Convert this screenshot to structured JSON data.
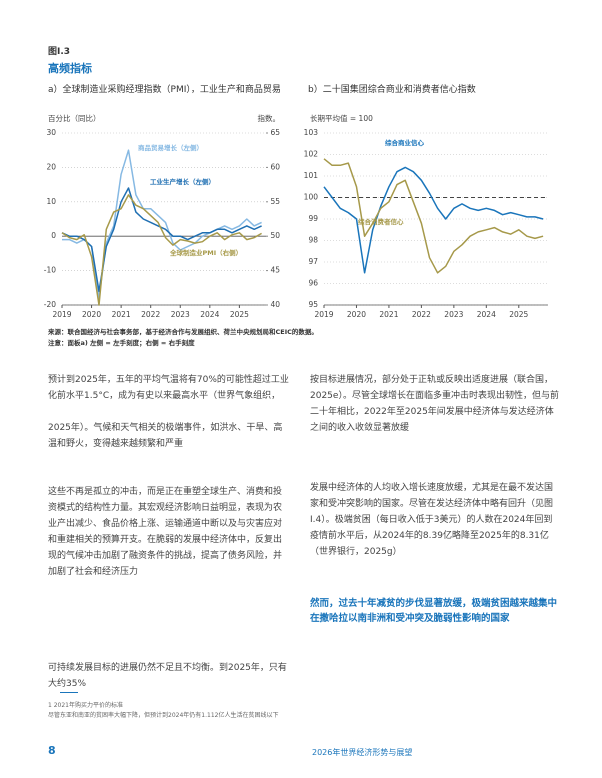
{
  "header": {
    "figure": "图I.3",
    "title": "高频指标"
  },
  "chart_data": [
    {
      "type": "line",
      "title": "a）全球制造业采购经理指数（PMI），工业生产和商品贸易",
      "y_label": "百分比（同比）",
      "y2_label": "指数。",
      "x": [
        2019.0,
        2019.25,
        2019.5,
        2019.75,
        2020.0,
        2020.25,
        2020.5,
        2020.75,
        2021.0,
        2021.25,
        2021.5,
        2021.75,
        2022.0,
        2022.25,
        2022.5,
        2022.75,
        2023.0,
        2023.25,
        2023.5,
        2023.75,
        2024.0,
        2024.25,
        2024.5,
        2024.75,
        2025.0,
        2025.25,
        2025.5,
        2025.75
      ],
      "xlim": [
        2019,
        2025.9
      ],
      "xticks": [
        2019,
        2020,
        2021,
        2022,
        2023,
        2024,
        2025
      ],
      "ylim": [
        -20,
        30
      ],
      "yticks": [
        -20,
        -10,
        0,
        10,
        20,
        30
      ],
      "y2lim": [
        40,
        65
      ],
      "y2ticks": [
        40,
        45,
        50,
        55,
        60,
        65
      ],
      "grid": true,
      "series": [
        {
          "name": "商品贸易增长（左侧）",
          "color": "#86b9e3",
          "axis": "y",
          "values": [
            -1,
            -1,
            -2,
            -1,
            -3,
            -18,
            -2,
            3,
            18,
            25,
            12,
            8,
            8,
            6,
            4,
            -2,
            -4,
            -3,
            -2,
            0,
            1,
            2,
            3,
            2,
            3,
            5,
            3,
            4
          ]
        },
        {
          "name": "工业生产增长（左侧）",
          "color": "#1f6fb2",
          "axis": "y",
          "values": [
            1,
            0,
            0,
            -1,
            -3,
            -16,
            -3,
            2,
            10,
            14,
            7,
            5,
            4,
            3,
            2,
            0,
            0,
            -1,
            0,
            1,
            1,
            2,
            2,
            1,
            2,
            3,
            2,
            3
          ]
        },
        {
          "name": "全球制造业PMI（右侧）",
          "color": "#a79a4a",
          "axis": "y2",
          "values": [
            50.5,
            49.8,
            49.5,
            50.2,
            47,
            40,
            51,
            53.5,
            54,
            56,
            54.5,
            54,
            53,
            52,
            49.8,
            48.7,
            49.5,
            49.3,
            49,
            49.2,
            50,
            50.5,
            49.5,
            50.2,
            50.5,
            49.5,
            49.8,
            50.4
          ]
        }
      ]
    },
    {
      "type": "line",
      "title": "b）二十国集团综合商业和消费者信心指数",
      "y_label": "长期平均值 = 100",
      "x": [
        2019.0,
        2019.25,
        2019.5,
        2019.75,
        2020.0,
        2020.25,
        2020.5,
        2020.75,
        2021.0,
        2021.25,
        2021.5,
        2021.75,
        2022.0,
        2022.25,
        2022.5,
        2022.75,
        2023.0,
        2023.25,
        2023.5,
        2023.75,
        2024.0,
        2024.25,
        2024.5,
        2024.75,
        2025.0,
        2025.25,
        2025.5,
        2025.75
      ],
      "xlim": [
        2019,
        2025.9
      ],
      "xticks": [
        2019,
        2020,
        2021,
        2022,
        2023,
        2024,
        2025
      ],
      "ylim": [
        95,
        103
      ],
      "yticks": [
        95,
        96,
        97,
        98,
        99,
        100,
        101,
        102,
        103
      ],
      "grid": true,
      "reference_line": 100,
      "series": [
        {
          "name": "综合商业信心",
          "color": "#1a75bb",
          "axis": "y",
          "values": [
            100.5,
            100,
            99.5,
            99.3,
            99,
            96.5,
            98.5,
            99.6,
            100.5,
            101.2,
            101.4,
            101.2,
            100.8,
            100.2,
            99.5,
            99,
            99.5,
            99.7,
            99.5,
            99.4,
            99.5,
            99.4,
            99.2,
            99.3,
            99.2,
            99.1,
            99.1,
            99
          ]
        },
        {
          "name": "综合消费者信心",
          "color": "#a6994a",
          "axis": "y",
          "values": [
            101.8,
            101.5,
            101.5,
            101.6,
            100.5,
            98.2,
            98.8,
            99.5,
            99.8,
            100.6,
            100.8,
            99.8,
            98.8,
            97.2,
            96.5,
            96.8,
            97.5,
            97.8,
            98.2,
            98.4,
            98.5,
            98.6,
            98.4,
            98.3,
            98.5,
            98.2,
            98.1,
            98.2
          ]
        }
      ]
    }
  ],
  "notes": {
    "source": "来源：联合国经济与社会事务部，基于经济合作与发展组织、荷兰中央规划局和CEIC的数据。",
    "note": "注意：面板a) 左侧 = 左手刻度；右侧 = 右手刻度"
  },
  "body": {
    "left": [
      "预计到2025年，五年的平均气温将有70%的可能性超过工业化前水平1.5°C，成为有史以来最高水平（世界气象组织，",
      "2025年）。气候和天气相关的极端事件，如洪水、干旱、高温和野火，变得越来越频繁和严重",
      "这些不再是孤立的冲击，而是正在重塑全球生产、消费和投资模式的结构性力量。其宏观经济影响日益明显，表现为农业产出减少、食品价格上涨、运输通道中断以及与灾害应对和重建相关的预算开支。在脆弱的发展中经济体中，反复出现的气候冲击加剧了融资条件的挑战，提高了债务风险，并加剧了社会和经济压力",
      "可持续发展目标的进展仍然不足且不均衡。到2025年，只有大约35%"
    ],
    "right": [
      "按目标进展情况，部分处于正轨或反映出适度进展（联合国，2025e）。尽管全球增长在面临多重冲击时表现出韧性，但与前二十年相比，2022年至2025年间发展中经济体与发达经济体之间的收入收敛显著放缓",
      "发展中经济体的人均收入增长速度放缓，尤其是在最不发达国家和受冲突影响的国家。尽管在发达经济体中略有回升（见图I.4）。极端贫困（每日收入低于3美元）的人数在2024年回到疫情前水平后，从2024年的8.39亿略降至2025年的8.31亿（世界银行，2025g）"
    ],
    "quote": "然而，过去十年减贫的步伐显著放缓，极端贫困越来越集中在撒哈拉以南非洲和受冲突及脆弱性影响的国家"
  },
  "footnotes": [
    "1    2021年购买力平价的标准",
    "尽管东亚和南亚的贫困率大幅下降，但预计到2024年仍有1.112亿人生活在贫困线以下"
  ],
  "footer": {
    "page": "8",
    "title": "2026年世界经济形势与展望"
  }
}
